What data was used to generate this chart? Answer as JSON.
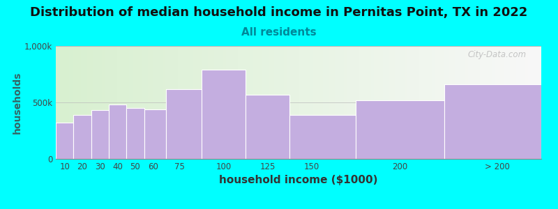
{
  "title": "Distribution of median household income in Pernitas Point, TX in 2022",
  "subtitle": "All residents",
  "xlabel": "household income ($1000)",
  "ylabel": "households",
  "background_outer": "#00FFFF",
  "bar_color": "#c4aee0",
  "bar_edge_color": "#ffffff",
  "watermark": "City-Data.com",
  "bin_edges": [
    5,
    15,
    25,
    35,
    45,
    55,
    67.5,
    87.5,
    112.5,
    137.5,
    175,
    225,
    280
  ],
  "xtick_positions": [
    10,
    20,
    30,
    40,
    50,
    60,
    75,
    100,
    125,
    150,
    200
  ],
  "xtick_labels": [
    "10",
    "20",
    "30",
    "40",
    "50",
    "60",
    "75",
    "100",
    "125",
    "150",
    "200"
  ],
  "xtick_extra_pos": 255,
  "xtick_extra_label": "> 200",
  "values": [
    320000,
    390000,
    430000,
    480000,
    450000,
    440000,
    620000,
    790000,
    570000,
    390000,
    520000,
    660000
  ],
  "ylim": [
    0,
    1000000
  ],
  "ytick_positions": [
    0,
    500000,
    1000000
  ],
  "ytick_labels": [
    "0",
    "500k",
    "1,000k"
  ],
  "title_fontsize": 13,
  "subtitle_fontsize": 11,
  "xlabel_fontsize": 11,
  "ylabel_fontsize": 10
}
